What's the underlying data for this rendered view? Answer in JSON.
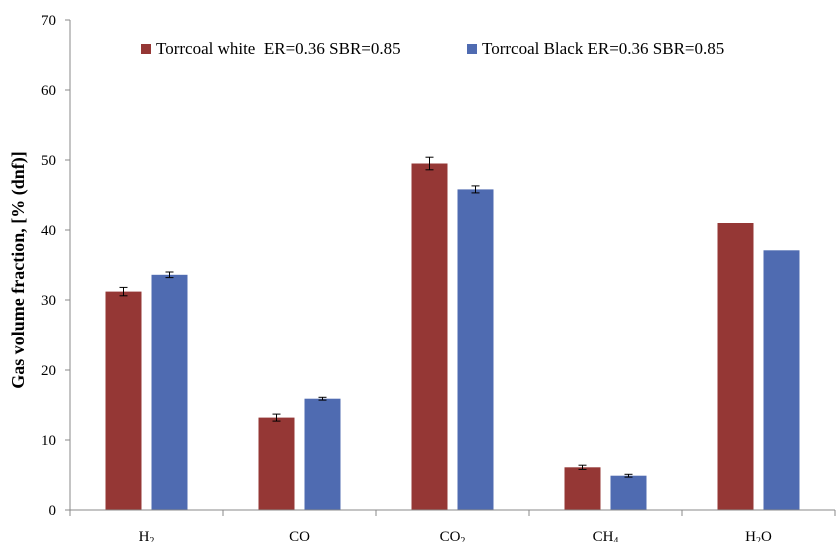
{
  "chart_data": {
    "type": "bar",
    "title": "",
    "xlabel": "",
    "ylabel": "Gas volume fraction, [% (dnf)]",
    "ylim": [
      0,
      70
    ],
    "yticks": [
      0,
      10,
      20,
      30,
      40,
      50,
      60,
      70
    ],
    "grid": false,
    "legend_position": "top",
    "categories": [
      {
        "base": "H",
        "sub": "2",
        "tail": ""
      },
      {
        "base": "CO",
        "sub": "",
        "tail": ""
      },
      {
        "base": "CO",
        "sub": "2",
        "tail": ""
      },
      {
        "base": "CH",
        "sub": "4",
        "tail": ""
      },
      {
        "base": "H",
        "sub": "2",
        "tail": "O"
      }
    ],
    "series": [
      {
        "name": "Torrcoal white  ER=0.36 SBR=0.85",
        "color": "#953735",
        "values": [
          31.2,
          13.2,
          49.5,
          6.1,
          41.0
        ],
        "errors": [
          0.6,
          0.5,
          0.9,
          0.3,
          null
        ]
      },
      {
        "name": "Torrcoal Black ER=0.36 SBR=0.85",
        "color": "#4F6BB1",
        "values": [
          33.6,
          15.9,
          45.8,
          4.9,
          37.1
        ],
        "errors": [
          0.4,
          0.2,
          0.5,
          0.2,
          null
        ]
      }
    ]
  }
}
